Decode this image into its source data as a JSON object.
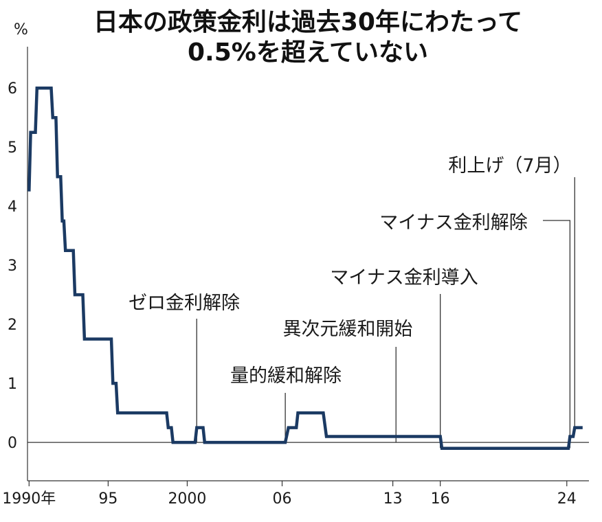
{
  "chart_data": {
    "type": "line",
    "title_lines": [
      "日本の政策金利は過去30年にわたって",
      "0.5%を超えていない"
    ],
    "ylabel": "%",
    "xlim": [
      1989.9,
      2025.4
    ],
    "ylim": [
      -0.65,
      6.7
    ],
    "yticks": [
      {
        "value": 0,
        "label": "0"
      },
      {
        "value": 1,
        "label": "1"
      },
      {
        "value": 2,
        "label": "2"
      },
      {
        "value": 3,
        "label": "3"
      },
      {
        "value": 4,
        "label": "4"
      },
      {
        "value": 5,
        "label": "5"
      },
      {
        "value": 6,
        "label": "6"
      }
    ],
    "xticks": [
      {
        "value": 1990,
        "label": "1990年"
      },
      {
        "value": 1995,
        "label": "95"
      },
      {
        "value": 2000,
        "label": "2000"
      },
      {
        "value": 2006,
        "label": "06"
      },
      {
        "value": 2013,
        "label": "13"
      },
      {
        "value": 2016,
        "label": "16"
      },
      {
        "value": 2024,
        "label": "24"
      }
    ],
    "series": [
      {
        "color": "#1b3a63",
        "points": [
          [
            1990.0,
            4.25
          ],
          [
            1990.1,
            5.25
          ],
          [
            1990.4,
            5.25
          ],
          [
            1990.5,
            6.0
          ],
          [
            1991.4,
            6.0
          ],
          [
            1991.5,
            5.5
          ],
          [
            1991.7,
            5.5
          ],
          [
            1991.8,
            4.5
          ],
          [
            1992.0,
            4.5
          ],
          [
            1992.1,
            3.75
          ],
          [
            1992.2,
            3.75
          ],
          [
            1992.3,
            3.25
          ],
          [
            1992.8,
            3.25
          ],
          [
            1992.9,
            2.5
          ],
          [
            1993.4,
            2.5
          ],
          [
            1993.5,
            1.75
          ],
          [
            1995.2,
            1.75
          ],
          [
            1995.3,
            1.0
          ],
          [
            1995.5,
            1.0
          ],
          [
            1995.6,
            0.5
          ],
          [
            1998.7,
            0.5
          ],
          [
            1998.8,
            0.25
          ],
          [
            1999.0,
            0.25
          ],
          [
            1999.1,
            0.0
          ],
          [
            2000.5,
            0.0
          ],
          [
            2000.6,
            0.25
          ],
          [
            2001.0,
            0.25
          ],
          [
            2001.1,
            0.0
          ],
          [
            2006.2,
            0.0
          ],
          [
            2006.4,
            0.25
          ],
          [
            2006.9,
            0.25
          ],
          [
            2007.0,
            0.5
          ],
          [
            2008.6,
            0.5
          ],
          [
            2008.7,
            0.3
          ],
          [
            2008.8,
            0.1
          ],
          [
            2016.0,
            0.1
          ],
          [
            2016.1,
            -0.1
          ],
          [
            2024.1,
            -0.1
          ],
          [
            2024.2,
            0.1
          ],
          [
            2024.4,
            0.1
          ],
          [
            2024.5,
            0.25
          ],
          [
            2025.0,
            0.25
          ]
        ]
      }
    ],
    "annotations": [
      {
        "text": "ゼロ金利解除",
        "x": 2000.6
      },
      {
        "text": "量的緩和解除",
        "x": 2006.2
      },
      {
        "text": "異次元緩和開始",
        "x": 2013.2
      },
      {
        "text": "マイナス金利導入",
        "x": 2016.0
      },
      {
        "text": "マイナス金利解除",
        "x": 2024.2
      },
      {
        "text": "利上げ（7月）",
        "x": 2024.5
      }
    ]
  }
}
